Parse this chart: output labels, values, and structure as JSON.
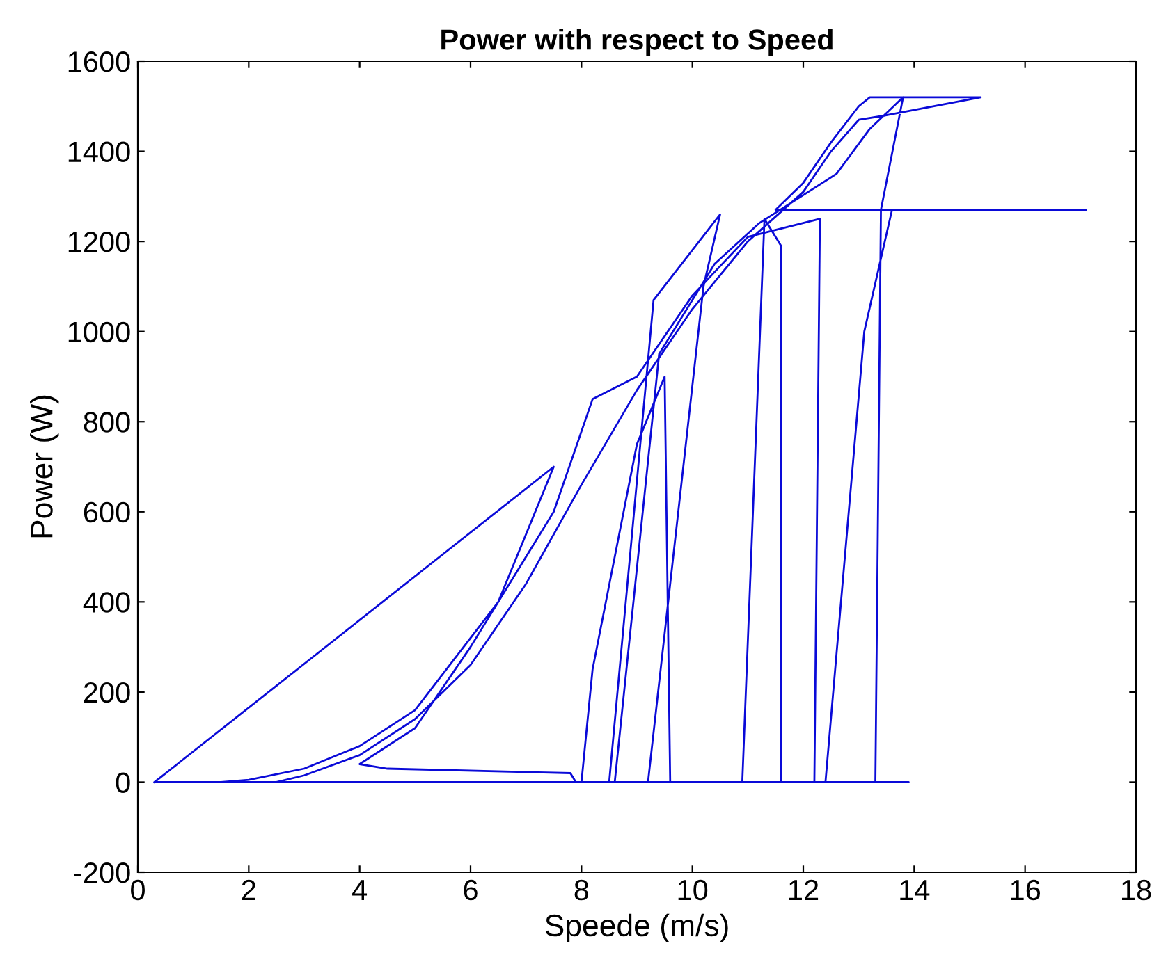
{
  "chart_data": {
    "type": "line",
    "title": "Power with respect to Speed",
    "xlabel": "Speede (m/s)",
    "ylabel": "Power (W)",
    "xlim": [
      0,
      18
    ],
    "xticks": [
      0,
      2,
      4,
      6,
      8,
      10,
      12,
      14,
      16,
      18
    ],
    "ylim": [
      -200,
      1600
    ],
    "yticks": [
      -200,
      0,
      200,
      400,
      600,
      800,
      1000,
      1200,
      1400,
      1600
    ],
    "grid": false,
    "legend": false,
    "marker": "none",
    "line_style": "solid",
    "series": [
      {
        "color": "#0a0ad8",
        "x": [
          0.3,
          7.5,
          6.5,
          5,
          4,
          3,
          2,
          1.5,
          0.3,
          13.9,
          12.4,
          13.1,
          13.6,
          17.1,
          11.5,
          12,
          12.5,
          13,
          13.2,
          15.2,
          13.5,
          13,
          12.5,
          12,
          11,
          10,
          9,
          8,
          7,
          6,
          5,
          4,
          3,
          2.5,
          8,
          8.2,
          9,
          9.5,
          9.6,
          10.9,
          11.3,
          11.6,
          11.6,
          12.2,
          12.3,
          11,
          10,
          9,
          8.2,
          7.5,
          6,
          5,
          4,
          4.5,
          7.8,
          7.9,
          8.5,
          9.3,
          10.5,
          10.2,
          9.2,
          8.6,
          9.4,
          10.4,
          11.2,
          12.6,
          13.2,
          13.8,
          13.4,
          13.3
        ],
        "values": [
          0,
          700,
          400,
          160,
          80,
          30,
          5,
          0,
          0,
          0,
          0,
          1000,
          1270,
          1270,
          1270,
          1330,
          1420,
          1500,
          1520,
          1520,
          1480,
          1470,
          1400,
          1310,
          1200,
          1050,
          870,
          660,
          440,
          260,
          140,
          60,
          15,
          0,
          0,
          250,
          750,
          900,
          0,
          0,
          1250,
          1190,
          0,
          0,
          1250,
          1210,
          1080,
          900,
          850,
          600,
          300,
          120,
          40,
          30,
          20,
          0,
          0,
          1070,
          1260,
          1100,
          0,
          0,
          950,
          1150,
          1240,
          1350,
          1450,
          1520,
          1270,
          0
        ]
      }
    ]
  }
}
